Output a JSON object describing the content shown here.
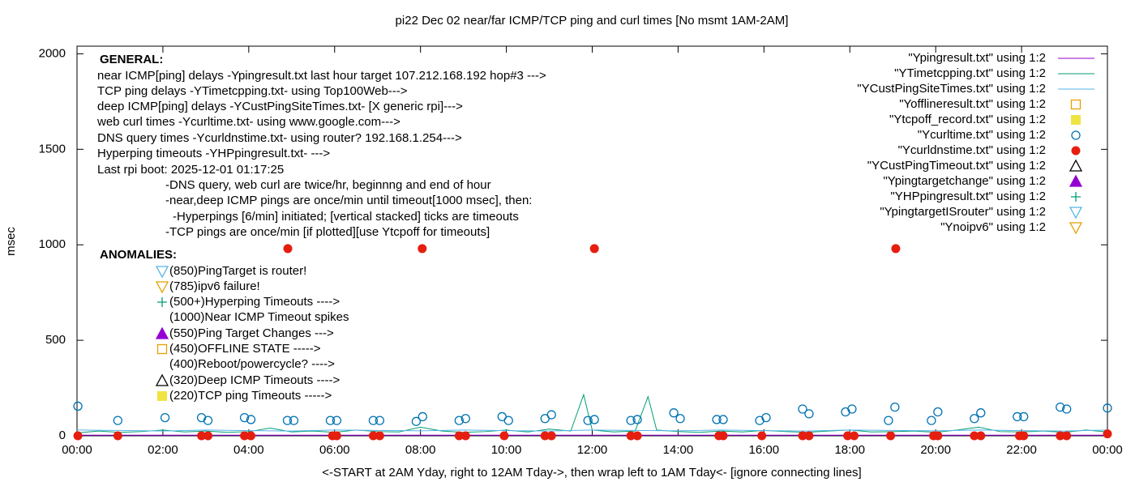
{
  "chart_data": {
    "type": "line",
    "title": "pi22 Dec 02  near/far ICMP/TCP ping and curl times [No msmt 1AM-2AM]",
    "xlabel": "<-START at 2AM Yday, right to 12AM Tday->, then wrap left to 1AM Tday<- [ignore connecting lines]",
    "ylabel": "msec",
    "xlim": [
      0,
      24
    ],
    "ylim": [
      0,
      2040
    ],
    "yticks": [
      0,
      500,
      1000,
      1500,
      2000
    ],
    "xticks": [
      {
        "value": 0,
        "label": "00:00"
      },
      {
        "value": 2,
        "label": "02:00"
      },
      {
        "value": 4,
        "label": "04:00"
      },
      {
        "value": 6,
        "label": "06:00"
      },
      {
        "value": 8,
        "label": "08:00"
      },
      {
        "value": 10,
        "label": "10:00"
      },
      {
        "value": 12,
        "label": "12:00"
      },
      {
        "value": 14,
        "label": "14:00"
      },
      {
        "value": 16,
        "label": "16:00"
      },
      {
        "value": 18,
        "label": "18:00"
      },
      {
        "value": 20,
        "label": "20:00"
      },
      {
        "value": 22,
        "label": "22:00"
      },
      {
        "value": 24,
        "label": "00:00"
      }
    ],
    "grid": false,
    "legend": "top-right",
    "annotations": [
      "GENERAL:",
      "near ICMP[ping] delays -Ypingresult.txt last hour target 107.212.168.192 hop#3 --->",
      "TCP ping delays -YTimetcpping.txt- using Top100Web--->",
      "deep ICMP[ping] delays -YCustPingSiteTimes.txt- [X generic rpi]--->",
      "web curl times -Ycurltime.txt- using www.google.com--->",
      "DNS query times -Ycurldnstime.txt- using router? 192.168.1.254--->",
      "Hyperping timeouts -YHPpingresult.txt- --->",
      "Last rpi boot: 2025-12-01 01:17:25",
      "-DNS query, web curl are twice/hr, beginnng and end of hour",
      "-near,deep ICMP pings are once/min until timeout[1000 msec], then:",
      "-Hyperpings [6/min] initiated; [vertical stacked] ticks are timeouts",
      "-TCP pings are once/min [if plotted][use Ytcpoff for timeouts]",
      "ANOMALIES:",
      "(850)PingTarget is router!",
      "(785)ipv6 failure!",
      "(500+)Hyperping Timeouts ---->",
      "(1000)Near ICMP Timeout spikes",
      "(550)Ping Target Changes --->",
      "(450)OFFLINE STATE ----->",
      "(400)Reboot/powercycle? ---->",
      "(320)Deep ICMP Timeouts ---->",
      "(220)TCP ping Timeouts ----->"
    ],
    "series": [
      {
        "name": "\"Ypingresult.txt\" using 1:2",
        "color": "#9400d3",
        "marker": "line",
        "x": [
          0,
          3,
          6,
          9,
          12,
          15,
          18,
          21,
          24
        ],
        "values": [
          3,
          3,
          3,
          3,
          3,
          3,
          3,
          3,
          3
        ]
      },
      {
        "name": "\"YTimetcpping.txt\" using 1:2",
        "color": "#009e73",
        "marker": "line",
        "x": [
          0,
          0.5,
          1,
          1.5,
          2,
          2.5,
          3,
          3.5,
          4,
          4.5,
          5,
          5.5,
          6,
          6.5,
          7,
          7.5,
          8,
          8.5,
          9,
          9.5,
          10,
          10.5,
          11,
          11.5,
          11.8,
          12,
          12.5,
          13,
          13.3,
          13.5,
          14,
          14.5,
          15,
          15.5,
          16,
          16.5,
          17,
          17.5,
          18,
          18.5,
          19,
          19.5,
          20,
          20.5,
          21,
          21.5,
          22,
          22.5,
          23,
          23.5,
          24
        ],
        "values": [
          15,
          25,
          18,
          22,
          30,
          20,
          25,
          18,
          22,
          40,
          20,
          25,
          18,
          30,
          22,
          20,
          45,
          25,
          18,
          22,
          30,
          20,
          35,
          25,
          215,
          30,
          20,
          25,
          205,
          30,
          22,
          18,
          25,
          20,
          28,
          22,
          18,
          25,
          30,
          20,
          22,
          25,
          18,
          30,
          45,
          22,
          20,
          25,
          18,
          30,
          20
        ]
      },
      {
        "name": "\"YCustPingSiteTimes.txt\" using 1:2",
        "color": "#56b4e9",
        "marker": "line",
        "x": [
          0,
          1,
          2,
          3,
          4,
          5,
          6,
          7,
          8,
          9,
          10,
          11,
          12,
          13,
          14,
          15,
          16,
          17,
          18,
          19,
          20,
          21,
          22,
          23,
          24
        ],
        "values": [
          30,
          28,
          25,
          30,
          27,
          25,
          30,
          28,
          26,
          30,
          27,
          25,
          30,
          28,
          26,
          30,
          27,
          25,
          30,
          28,
          26,
          30,
          27,
          25,
          30
        ]
      },
      {
        "name": "\"Yofflineresult.txt\" using 1:2",
        "color": "#e69f00",
        "marker": "square-open",
        "x": [],
        "values": []
      },
      {
        "name": "\"Ytcpoff_record.txt\" using 1:2",
        "color": "#f0e442",
        "marker": "square-filled",
        "x": [],
        "values": []
      },
      {
        "name": "\"Ycurltime.txt\" using 1:2",
        "color": "#0072b2",
        "marker": "circle-open",
        "x": [
          0.02,
          0.95,
          2.05,
          2.9,
          3.05,
          3.9,
          4.05,
          4.9,
          5.05,
          5.9,
          6.05,
          6.9,
          7.05,
          7.9,
          8.05,
          8.9,
          9.05,
          9.9,
          10.05,
          10.9,
          11.05,
          11.9,
          12.05,
          12.9,
          13.05,
          13.9,
          14.05,
          14.9,
          15.05,
          15.9,
          16.05,
          16.9,
          17.05,
          17.9,
          18.05,
          18.9,
          19.05,
          19.9,
          20.05,
          20.9,
          21.05,
          21.9,
          22.05,
          22.9,
          23.05,
          24
        ],
        "values": [
          155,
          80,
          95,
          95,
          80,
          95,
          85,
          80,
          80,
          80,
          80,
          80,
          80,
          75,
          100,
          80,
          90,
          100,
          80,
          90,
          110,
          80,
          85,
          80,
          85,
          120,
          90,
          85,
          85,
          80,
          95,
          140,
          115,
          125,
          140,
          80,
          150,
          80,
          125,
          90,
          120,
          100,
          100,
          150,
          140,
          145
        ]
      },
      {
        "name": "\"Ycurldnstime.txt\" using 1:2",
        "color": "#e51e10",
        "marker": "circle-filled",
        "x": [
          0.02,
          0.95,
          2.9,
          3.05,
          3.9,
          4.05,
          4.91,
          5.95,
          6.05,
          6.9,
          7.05,
          8.04,
          8.9,
          9.05,
          9.95,
          10.9,
          11.05,
          12.05,
          12.9,
          13.05,
          14.95,
          15.05,
          15.95,
          16.9,
          17.05,
          17.95,
          18.1,
          18.95,
          19.07,
          19.95,
          20.05,
          20.9,
          21.05,
          21.95,
          22.05,
          22.9,
          23.05,
          24
        ],
        "values": [
          0,
          0,
          0,
          0,
          0,
          0,
          980,
          0,
          0,
          0,
          0,
          980,
          0,
          0,
          0,
          0,
          0,
          980,
          0,
          0,
          0,
          0,
          0,
          0,
          0,
          0,
          0,
          0,
          980,
          0,
          0,
          0,
          0,
          0,
          0,
          0,
          0,
          10
        ]
      },
      {
        "name": "\"YCustPingTimeout.txt\" using 1:2",
        "color": "#000000",
        "marker": "triangle-open",
        "x": [],
        "values": []
      },
      {
        "name": "\"Ypingtargetchange\" using 1:2",
        "color": "#9400d3",
        "marker": "triangle-filled",
        "x": [],
        "values": []
      },
      {
        "name": "\"YHPpingresult.txt\" using 1:2",
        "color": "#009e73",
        "marker": "plus",
        "x": [],
        "values": []
      },
      {
        "name": "\"YpingtargetISrouter\" using 1:2",
        "color": "#56b4e9",
        "marker": "tridown-open",
        "x": [],
        "values": []
      },
      {
        "name": "\"Ynoipv6\" using 1:2",
        "color": "#e69f00",
        "marker": "tridown-open",
        "x": [],
        "values": []
      }
    ]
  }
}
